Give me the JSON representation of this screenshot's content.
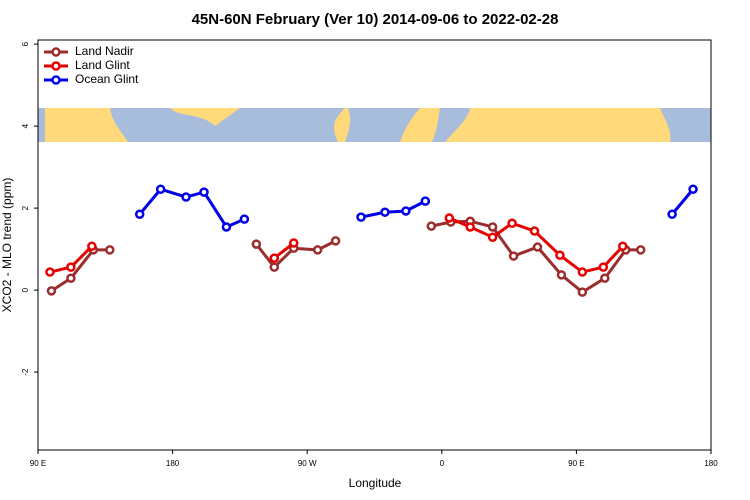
{
  "chart_data": {
    "type": "line",
    "title": "45N-60N February (Ver 10)   2014-09-06 to 2022-02-28",
    "x_label": "Longitude",
    "y_label": "XCO2 - MLO trend (ppm)",
    "xlim": [
      90,
      540
    ],
    "xticks": [
      {
        "value": 90,
        "label": "90 E"
      },
      {
        "value": 180,
        "label": "180"
      },
      {
        "value": 270,
        "label": "90 W"
      },
      {
        "value": 360,
        "label": "0"
      },
      {
        "value": 450,
        "label": "90 E"
      },
      {
        "value": 540,
        "label": "180"
      }
    ],
    "ylim": [
      -3.9,
      6.1
    ],
    "yticks": [
      -2,
      0,
      2,
      4,
      6
    ],
    "legend": "top-left",
    "series": [
      {
        "name": "Land Nadir",
        "color": "#9b2d2d",
        "x": [
          99,
          112,
          127,
          138,
          null,
          236,
          248,
          261,
          277,
          289,
          null,
          353,
          366,
          379,
          394,
          408,
          424,
          440,
          454,
          469,
          483,
          493
        ],
        "values": [
          -0.02,
          0.29,
          0.98,
          0.98,
          null,
          1.12,
          0.56,
          1.02,
          0.98,
          1.2,
          null,
          1.56,
          1.66,
          1.68,
          1.54,
          0.83,
          1.05,
          0.37,
          -0.05,
          0.29,
          0.98,
          0.98
        ]
      },
      {
        "name": "Land Glint",
        "color": "#e60000",
        "x": [
          98,
          112,
          126,
          null,
          248,
          261,
          null,
          365,
          379,
          394,
          407,
          422,
          439,
          454,
          468,
          481
        ],
        "values": [
          0.44,
          0.56,
          1.07,
          null,
          0.78,
          1.15,
          null,
          1.76,
          1.54,
          1.29,
          1.63,
          1.44,
          0.85,
          0.44,
          0.56,
          1.07
        ]
      },
      {
        "name": "Ocean Glint",
        "color": "#0000e6",
        "x": [
          158,
          172,
          189,
          201,
          216,
          228,
          null,
          306,
          322,
          336,
          349,
          null,
          514,
          528
        ],
        "values": [
          1.85,
          2.46,
          2.27,
          2.39,
          1.54,
          1.73,
          null,
          1.78,
          1.9,
          1.93,
          2.17,
          null,
          1.85,
          2.46
        ]
      }
    ]
  }
}
